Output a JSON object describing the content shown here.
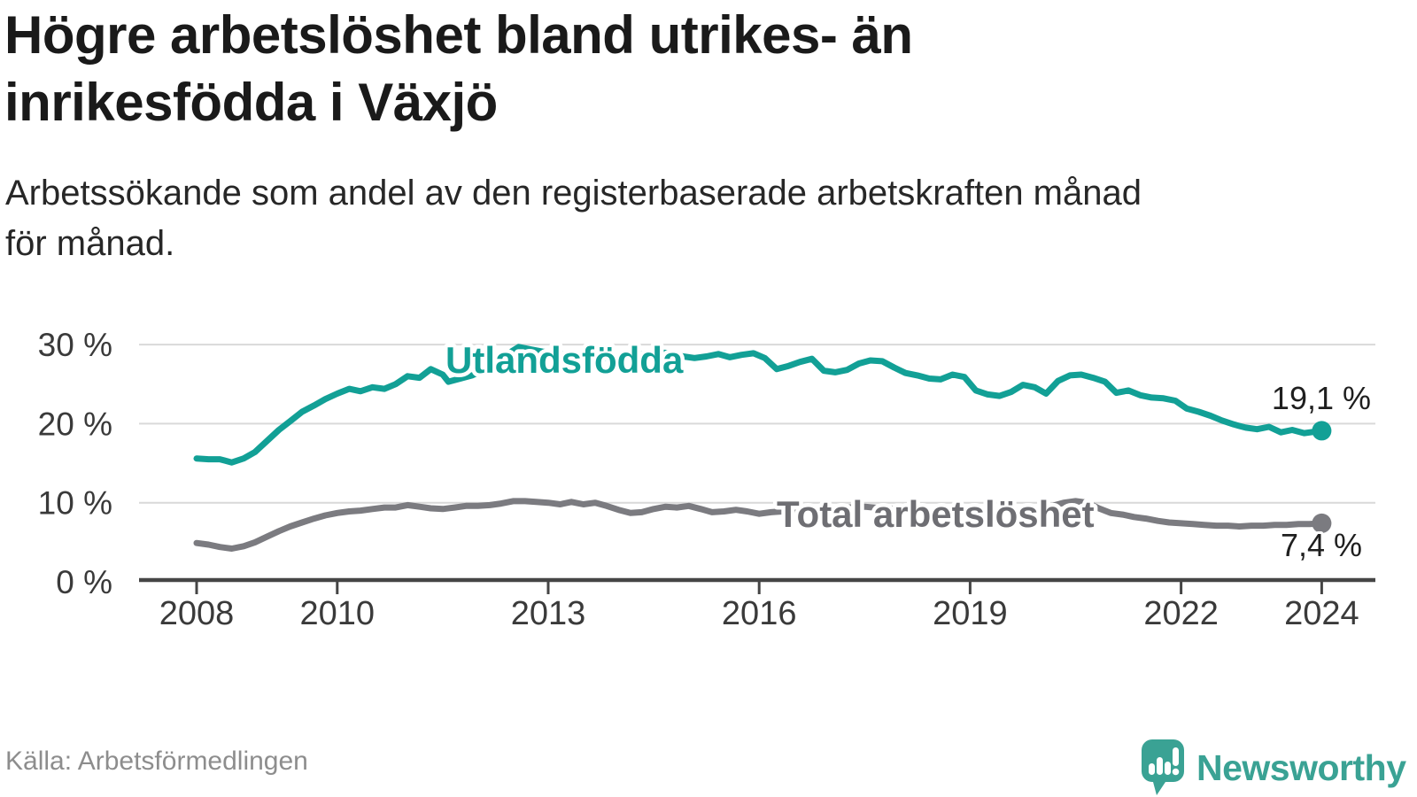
{
  "header": {
    "title": "Högre arbetslöshet bland utrikes- än inrikesfödda i Växjö",
    "subtitle_line1": "Arbetssökande som andel av den registerbaserade arbetskraften månad",
    "subtitle_line2": "för månad."
  },
  "chart_data": {
    "type": "line",
    "title": "Högre arbetslöshet bland utrikes- än inrikesfödda i Växjö",
    "unit": "%",
    "grid": true,
    "legend_position": "inline-labels",
    "x_axis": {
      "range": [
        2008,
        2024.2
      ],
      "ticks": [
        {
          "year": 2008,
          "label": "2008"
        },
        {
          "year": 2010,
          "label": "2010"
        },
        {
          "year": 2013,
          "label": "2013"
        },
        {
          "year": 2016,
          "label": "2016"
        },
        {
          "year": 2019,
          "label": "2019"
        },
        {
          "year": 2022,
          "label": "2022"
        },
        {
          "year": 2024,
          "label": "2024"
        }
      ]
    },
    "y_axis": {
      "range": [
        0,
        31.5
      ],
      "ticks": [
        {
          "value": 0,
          "label": "0 %"
        },
        {
          "value": 10,
          "label": "10 %"
        },
        {
          "value": 20,
          "label": "20 %"
        },
        {
          "value": 30,
          "label": "30 %"
        }
      ]
    },
    "colors": {
      "grid": "#d9d9d9",
      "axis": "#454545",
      "tick_text": "#3a3a3a"
    },
    "series": [
      {
        "name": "Utlandsfödda",
        "color": "#12a096",
        "label_color": "#12a096",
        "end_label": "19,1 %",
        "end_value": 19.1,
        "points": [
          [
            2008.0,
            15.6
          ],
          [
            2008.17,
            15.5
          ],
          [
            2008.33,
            15.5
          ],
          [
            2008.5,
            15.1
          ],
          [
            2008.67,
            15.6
          ],
          [
            2008.83,
            16.4
          ],
          [
            2009.0,
            17.8
          ],
          [
            2009.17,
            19.2
          ],
          [
            2009.33,
            20.3
          ],
          [
            2009.5,
            21.5
          ],
          [
            2009.67,
            22.3
          ],
          [
            2009.83,
            23.1
          ],
          [
            2010.0,
            23.8
          ],
          [
            2010.17,
            24.4
          ],
          [
            2010.33,
            24.1
          ],
          [
            2010.5,
            24.6
          ],
          [
            2010.67,
            24.4
          ],
          [
            2010.83,
            25.0
          ],
          [
            2011.0,
            26.0
          ],
          [
            2011.17,
            25.8
          ],
          [
            2011.33,
            26.9
          ],
          [
            2011.5,
            26.2
          ],
          [
            2011.58,
            25.3
          ],
          [
            2011.75,
            25.7
          ],
          [
            2011.92,
            26.1
          ],
          [
            2012.08,
            26.8
          ],
          [
            2012.25,
            27.6
          ],
          [
            2012.42,
            28.8
          ],
          [
            2012.58,
            29.7
          ],
          [
            2012.75,
            29.4
          ],
          [
            2012.92,
            29.1
          ],
          [
            2013.08,
            28.9
          ],
          [
            2013.25,
            28.7
          ],
          [
            2013.42,
            28.5
          ],
          [
            2013.58,
            28.4
          ],
          [
            2013.75,
            28.3
          ],
          [
            2013.92,
            28.4
          ],
          [
            2014.08,
            28.5
          ],
          [
            2014.25,
            28.7
          ],
          [
            2014.42,
            28.9
          ],
          [
            2014.58,
            29.0
          ],
          [
            2014.75,
            28.9
          ],
          [
            2014.92,
            28.5
          ],
          [
            2015.08,
            28.3
          ],
          [
            2015.25,
            28.5
          ],
          [
            2015.42,
            28.8
          ],
          [
            2015.58,
            28.4
          ],
          [
            2015.75,
            28.7
          ],
          [
            2015.92,
            28.9
          ],
          [
            2016.08,
            28.3
          ],
          [
            2016.25,
            26.9
          ],
          [
            2016.42,
            27.3
          ],
          [
            2016.58,
            27.8
          ],
          [
            2016.75,
            28.2
          ],
          [
            2016.92,
            26.7
          ],
          [
            2017.08,
            26.5
          ],
          [
            2017.25,
            26.8
          ],
          [
            2017.42,
            27.6
          ],
          [
            2017.58,
            28.0
          ],
          [
            2017.75,
            27.9
          ],
          [
            2017.92,
            27.1
          ],
          [
            2018.08,
            26.4
          ],
          [
            2018.25,
            26.1
          ],
          [
            2018.42,
            25.7
          ],
          [
            2018.58,
            25.6
          ],
          [
            2018.75,
            26.2
          ],
          [
            2018.92,
            25.9
          ],
          [
            2019.08,
            24.2
          ],
          [
            2019.25,
            23.7
          ],
          [
            2019.42,
            23.5
          ],
          [
            2019.58,
            24.0
          ],
          [
            2019.75,
            24.9
          ],
          [
            2019.92,
            24.6
          ],
          [
            2020.08,
            23.8
          ],
          [
            2020.25,
            25.4
          ],
          [
            2020.42,
            26.1
          ],
          [
            2020.58,
            26.2
          ],
          [
            2020.75,
            25.8
          ],
          [
            2020.92,
            25.3
          ],
          [
            2021.08,
            23.9
          ],
          [
            2021.25,
            24.2
          ],
          [
            2021.42,
            23.6
          ],
          [
            2021.58,
            23.3
          ],
          [
            2021.75,
            23.2
          ],
          [
            2021.92,
            22.9
          ],
          [
            2022.08,
            21.9
          ],
          [
            2022.25,
            21.5
          ],
          [
            2022.42,
            21.0
          ],
          [
            2022.58,
            20.4
          ],
          [
            2022.75,
            19.9
          ],
          [
            2022.92,
            19.5
          ],
          [
            2023.08,
            19.3
          ],
          [
            2023.25,
            19.6
          ],
          [
            2023.42,
            18.9
          ],
          [
            2023.58,
            19.2
          ],
          [
            2023.75,
            18.8
          ],
          [
            2023.92,
            19.0
          ],
          [
            2024.0,
            19.1
          ]
        ]
      },
      {
        "name": "Total arbetslöshet",
        "color": "#7b7b80",
        "label_color": "#6e6e73",
        "end_label": "7,4 %",
        "end_value": 7.4,
        "points": [
          [
            2008.0,
            4.9
          ],
          [
            2008.17,
            4.7
          ],
          [
            2008.33,
            4.4
          ],
          [
            2008.5,
            4.2
          ],
          [
            2008.67,
            4.5
          ],
          [
            2008.83,
            5.0
          ],
          [
            2009.0,
            5.7
          ],
          [
            2009.17,
            6.4
          ],
          [
            2009.33,
            7.0
          ],
          [
            2009.5,
            7.5
          ],
          [
            2009.67,
            8.0
          ],
          [
            2009.83,
            8.4
          ],
          [
            2010.0,
            8.7
          ],
          [
            2010.17,
            8.9
          ],
          [
            2010.33,
            9.0
          ],
          [
            2010.5,
            9.2
          ],
          [
            2010.67,
            9.4
          ],
          [
            2010.83,
            9.4
          ],
          [
            2011.0,
            9.7
          ],
          [
            2011.17,
            9.5
          ],
          [
            2011.33,
            9.3
          ],
          [
            2011.5,
            9.2
          ],
          [
            2011.67,
            9.4
          ],
          [
            2011.83,
            9.6
          ],
          [
            2012.0,
            9.6
          ],
          [
            2012.17,
            9.7
          ],
          [
            2012.33,
            9.9
          ],
          [
            2012.5,
            10.2
          ],
          [
            2012.67,
            10.2
          ],
          [
            2012.83,
            10.1
          ],
          [
            2013.0,
            10.0
          ],
          [
            2013.17,
            9.8
          ],
          [
            2013.33,
            10.1
          ],
          [
            2013.5,
            9.8
          ],
          [
            2013.67,
            10.0
          ],
          [
            2013.83,
            9.6
          ],
          [
            2014.0,
            9.1
          ],
          [
            2014.17,
            8.7
          ],
          [
            2014.33,
            8.8
          ],
          [
            2014.5,
            9.2
          ],
          [
            2014.67,
            9.5
          ],
          [
            2014.83,
            9.4
          ],
          [
            2015.0,
            9.6
          ],
          [
            2015.17,
            9.2
          ],
          [
            2015.33,
            8.8
          ],
          [
            2015.5,
            8.9
          ],
          [
            2015.67,
            9.1
          ],
          [
            2015.83,
            8.9
          ],
          [
            2016.0,
            8.6
          ],
          [
            2016.17,
            8.8
          ],
          [
            2016.33,
            8.9
          ],
          [
            2016.5,
            9.1
          ],
          [
            2016.67,
            9.2
          ],
          [
            2016.83,
            9.1
          ],
          [
            2017.0,
            9.2
          ],
          [
            2017.25,
            9.4
          ],
          [
            2017.5,
            9.5
          ],
          [
            2017.75,
            9.3
          ],
          [
            2018.0,
            9.2
          ],
          [
            2018.25,
            9.0
          ],
          [
            2018.5,
            8.9
          ],
          [
            2018.75,
            8.8
          ],
          [
            2019.0,
            8.7
          ],
          [
            2019.25,
            8.8
          ],
          [
            2019.5,
            8.9
          ],
          [
            2019.75,
            9.0
          ],
          [
            2020.0,
            9.1
          ],
          [
            2020.17,
            9.6
          ],
          [
            2020.33,
            10.0
          ],
          [
            2020.5,
            10.2
          ],
          [
            2020.67,
            10.0
          ],
          [
            2020.83,
            9.3
          ],
          [
            2021.0,
            8.7
          ],
          [
            2021.17,
            8.5
          ],
          [
            2021.33,
            8.2
          ],
          [
            2021.5,
            8.0
          ],
          [
            2021.67,
            7.7
          ],
          [
            2021.83,
            7.5
          ],
          [
            2022.0,
            7.4
          ],
          [
            2022.17,
            7.3
          ],
          [
            2022.33,
            7.2
          ],
          [
            2022.5,
            7.1
          ],
          [
            2022.67,
            7.1
          ],
          [
            2022.83,
            7.0
          ],
          [
            2023.0,
            7.1
          ],
          [
            2023.17,
            7.1
          ],
          [
            2023.33,
            7.2
          ],
          [
            2023.5,
            7.2
          ],
          [
            2023.67,
            7.3
          ],
          [
            2023.83,
            7.3
          ],
          [
            2024.0,
            7.4
          ]
        ]
      }
    ]
  },
  "footer": {
    "source": "Källa: Arbetsförmedlingen",
    "brand_name": "Newsworthy",
    "brand_color": "#3aa294"
  }
}
